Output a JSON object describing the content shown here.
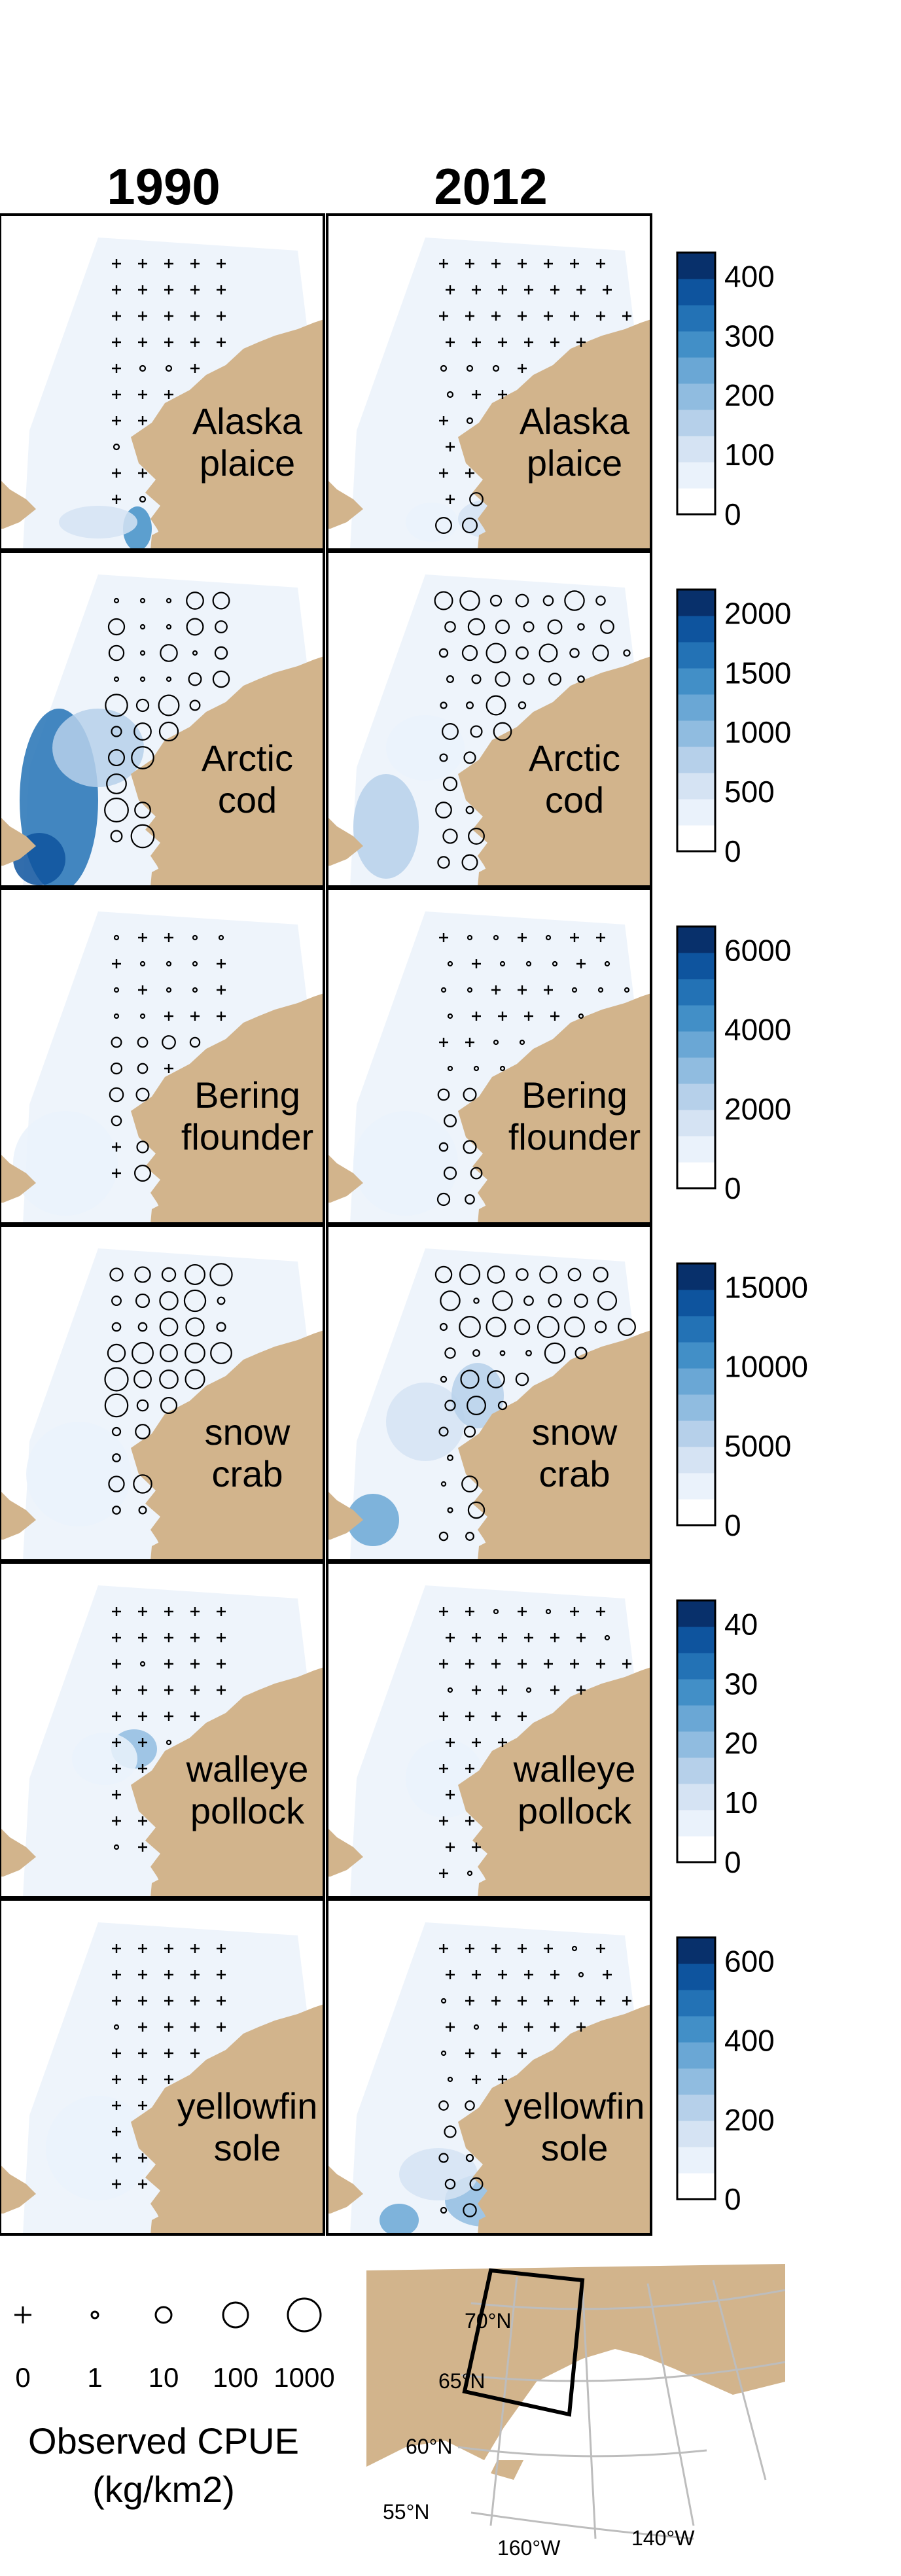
{
  "years": [
    "1990",
    "2012"
  ],
  "colors": {
    "land": "#d2b48c",
    "sea_base": "#eef4fb",
    "panel_border": "#000000",
    "ramp": [
      "#ffffff",
      "#eaf2fb",
      "#d5e3f3",
      "#b6d0ea",
      "#90bce0",
      "#6aa7d5",
      "#428fc7",
      "#2372b5",
      "#0e549e",
      "#08306b"
    ]
  },
  "chart_data": {
    "type": "heatmap",
    "title": "",
    "panels": [
      {
        "species": "Alaska plaice",
        "label_lines": [
          "Alaska",
          "plaice"
        ],
        "colorbar_ticks": [
          400,
          300,
          200,
          100,
          0
        ],
        "colorbar_max": 440,
        "observed_1990": "mostly zero catches (+)",
        "observed_2012": "mostly zero catches (+), small circles near coast"
      },
      {
        "species": "Arctic cod",
        "label_lines": [
          "Arctic",
          "cod"
        ],
        "colorbar_ticks": [
          2000,
          1500,
          1000,
          500,
          0
        ],
        "colorbar_max": 2200,
        "observed_1990": "many circles, large near coast",
        "observed_2012": "circles at nearly all stations"
      },
      {
        "species": "Bering flounder",
        "label_lines": [
          "Bering",
          "flounder"
        ],
        "colorbar_ticks": [
          6000,
          4000,
          2000,
          0
        ],
        "colorbar_max": 6600,
        "observed_1990": "mostly zero catches, circles near coast",
        "observed_2012": "small circles in south, dots in north"
      },
      {
        "species": "snow crab",
        "label_lines": [
          "snow",
          "crab"
        ],
        "colorbar_ticks": [
          15000,
          10000,
          5000,
          0
        ],
        "colorbar_max": 16500,
        "observed_1990": "large circles throughout",
        "observed_2012": "circles at nearly all stations"
      },
      {
        "species": "walleye pollock",
        "label_lines": [
          "walleye",
          "pollock"
        ],
        "colorbar_ticks": [
          40,
          30,
          20,
          10,
          0
        ],
        "colorbar_max": 44,
        "observed_1990": "zero catches (+) nearly everywhere",
        "observed_2012": "zero catches (+) nearly everywhere"
      },
      {
        "species": "yellowfin sole",
        "label_lines": [
          "yellowfin",
          "sole"
        ],
        "colorbar_ticks": [
          600,
          400,
          200,
          0
        ],
        "colorbar_max": 660,
        "observed_1990": "zero catches (+) nearly everywhere",
        "observed_2012": "circles in south near coast"
      }
    ],
    "size_legend": {
      "values": [
        "0",
        "1",
        "10",
        "100",
        "1000"
      ],
      "title_lines": [
        "Observed CPUE",
        "(kg/km2)"
      ]
    },
    "inset_map": {
      "lat_labels": [
        "70°N",
        "65°N",
        "60°N",
        "55°N"
      ],
      "lon_labels": [
        "160°W",
        "140°W"
      ]
    }
  }
}
